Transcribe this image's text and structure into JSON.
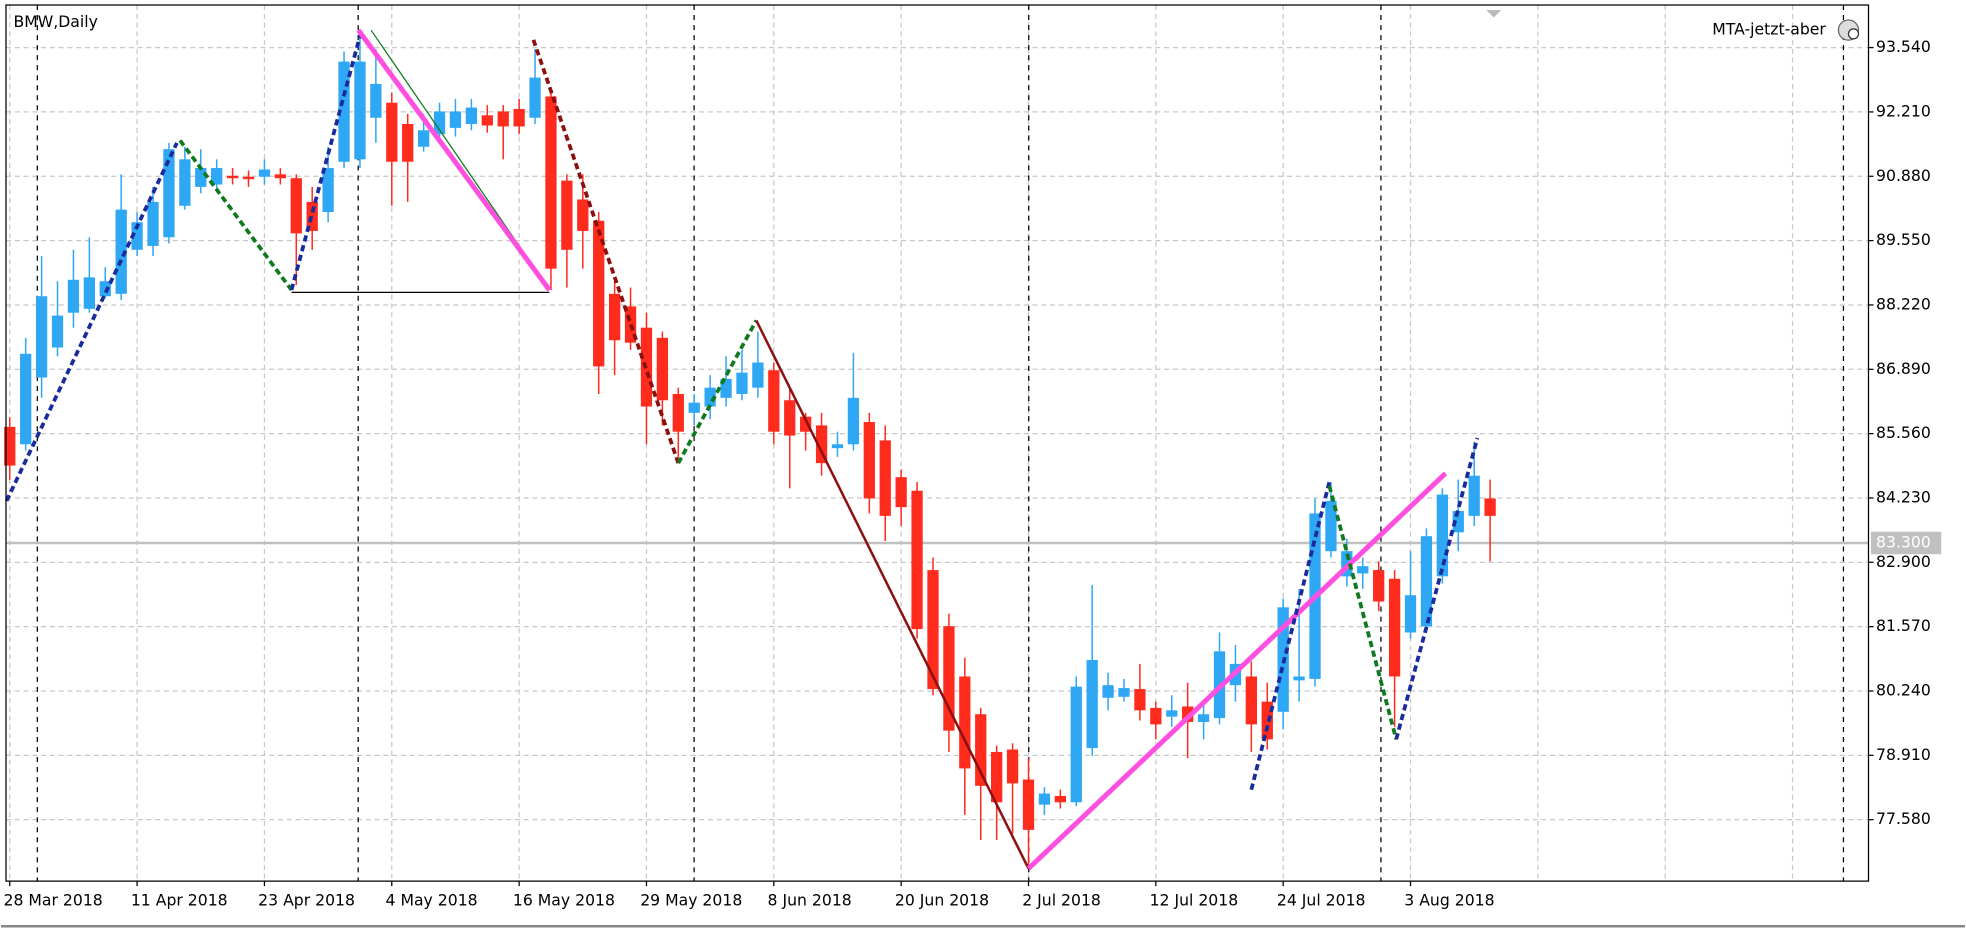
{
  "chart_data": {
    "type": "candlestick",
    "title": "BMW,Daily",
    "indicator": "MTA-jetzt-aber",
    "up_color": "#2ea7f5",
    "down_color": "#ff2b1c",
    "grid": true,
    "ylim": [
      76.31,
      94.42
    ],
    "yticks": [
      {
        "value": 93.54,
        "label": "93.540"
      },
      {
        "value": 92.21,
        "label": "92.210"
      },
      {
        "value": 90.88,
        "label": "90.880"
      },
      {
        "value": 89.55,
        "label": "89.550"
      },
      {
        "value": 88.22,
        "label": "88.220"
      },
      {
        "value": 86.89,
        "label": "86.890"
      },
      {
        "value": 85.56,
        "label": "85.560"
      },
      {
        "value": 84.23,
        "label": "84.230"
      },
      {
        "value": 82.9,
        "label": "82.900"
      },
      {
        "value": 81.57,
        "label": "81.570"
      },
      {
        "value": 80.24,
        "label": "80.240"
      },
      {
        "value": 78.91,
        "label": "78.910"
      },
      {
        "value": 77.58,
        "label": "77.580"
      }
    ],
    "bid": {
      "value": 83.3,
      "label": "83.300"
    },
    "categories": [
      "28 Mar 2018",
      null,
      null,
      null,
      null,
      null,
      null,
      null,
      "11 Apr 2018",
      null,
      null,
      null,
      null,
      null,
      null,
      null,
      "23 Apr 2018",
      null,
      null,
      null,
      null,
      null,
      null,
      null,
      "4 May 2018",
      null,
      null,
      null,
      null,
      null,
      null,
      null,
      "16 May 2018",
      null,
      null,
      null,
      null,
      null,
      null,
      null,
      "29 May 2018",
      null,
      null,
      null,
      null,
      null,
      null,
      null,
      "8 Jun 2018",
      null,
      null,
      null,
      null,
      null,
      null,
      null,
      "20 Jun 2018",
      null,
      null,
      null,
      null,
      null,
      null,
      null,
      "2 Jul 2018",
      null,
      null,
      null,
      null,
      null,
      null,
      null,
      "12 Jul 2018",
      null,
      null,
      null,
      null,
      null,
      null,
      null,
      "24 Jul 2018",
      null,
      null,
      null,
      null,
      null,
      null,
      null,
      "3 Aug 2018",
      null,
      null,
      null,
      null,
      null
    ],
    "open": [
      85.7,
      85.34,
      86.72,
      87.34,
      88.06,
      88.14,
      88.4,
      88.45,
      89.36,
      89.44,
      89.62,
      90.27,
      90.66,
      90.71,
      90.89,
      90.87,
      90.87,
      90.92,
      90.84,
      90.35,
      90.14,
      91.18,
      91.23,
      92.09,
      92.4,
      91.96,
      91.49,
      91.75,
      91.88,
      91.96,
      92.14,
      92.22,
      92.27,
      92.09,
      92.53,
      90.79,
      90.4,
      89.96,
      88.45,
      88.19,
      87.75,
      87.54,
      86.38,
      85.99,
      86.12,
      86.3,
      86.38,
      86.51,
      86.87,
      86.25,
      85.91,
      85.73,
      85.26,
      85.34,
      85.8,
      85.42,
      84.66,
      84.38,
      82.74,
      81.58,
      80.54,
      79.76,
      78.98,
      79.03,
      78.41,
      77.89,
      78.07,
      77.94,
      79.06,
      80.1,
      80.12,
      80.28,
      79.89,
      79.71,
      79.92,
      79.6,
      79.68,
      80.36,
      80.54,
      80.02,
      79.81,
      80.46,
      80.49,
      83.13,
      82.61,
      82.67,
      82.74,
      82.56,
      81.45,
      81.58,
      82.61,
      83.52,
      83.86,
      84.22
    ],
    "high": [
      85.9,
      87.54,
      89.23,
      88.71,
      89.36,
      89.62,
      89.0,
      90.92,
      90.14,
      90.66,
      91.57,
      91.49,
      91.44,
      91.23,
      91.05,
      91.0,
      91.23,
      91.05,
      90.92,
      90.66,
      91.49,
      93.46,
      93.83,
      93.51,
      92.61,
      92.17,
      92.17,
      92.4,
      92.48,
      92.48,
      92.35,
      92.35,
      92.48,
      93.51,
      92.61,
      90.92,
      90.92,
      90.14,
      88.71,
      88.58,
      88.06,
      87.67,
      86.51,
      86.38,
      86.77,
      87.16,
      87.29,
      87.67,
      87.03,
      86.51,
      85.99,
      85.99,
      85.6,
      87.23,
      85.99,
      85.73,
      84.82,
      84.56,
      83.0,
      81.84,
      80.93,
      79.89,
      79.11,
      79.16,
      78.85,
      78.25,
      78.2,
      80.54,
      82.43,
      80.62,
      80.49,
      80.8,
      80.02,
      80.15,
      80.41,
      80.07,
      81.45,
      81.19,
      80.85,
      80.41,
      82.15,
      82.35,
      84.22,
      84.56,
      83.39,
      83.0,
      82.92,
      82.74,
      83.13,
      83.6,
      84.43,
      84.61,
      85.39,
      84.61
    ],
    "low": [
      84.6,
      85.21,
      86.3,
      87.16,
      87.75,
      88.06,
      88.38,
      88.32,
      89.23,
      89.23,
      89.49,
      90.19,
      90.53,
      90.58,
      90.71,
      90.66,
      90.71,
      90.71,
      88.63,
      89.36,
      89.93,
      91.05,
      91.05,
      91.57,
      90.27,
      90.35,
      91.39,
      91.62,
      91.7,
      91.83,
      91.78,
      91.23,
      91.75,
      91.96,
      88.53,
      88.58,
      88.97,
      86.38,
      86.77,
      87.29,
      85.34,
      85.73,
      85.08,
      85.73,
      85.86,
      86.12,
      86.25,
      86.3,
      85.34,
      84.43,
      85.21,
      84.69,
      85.08,
      85.21,
      83.91,
      83.34,
      83.65,
      81.32,
      80.15,
      78.98,
      77.68,
      77.16,
      77.16,
      77.29,
      76.64,
      77.68,
      77.81,
      77.86,
      78.9,
      79.84,
      80.02,
      79.63,
      79.24,
      79.5,
      78.85,
      79.24,
      79.55,
      80.02,
      78.98,
      79.03,
      79.45,
      80.02,
      80.33,
      83.0,
      82.4,
      82.35,
      81.89,
      79.5,
      81.32,
      81.45,
      82.46,
      83.13,
      83.65,
      82.92
    ],
    "close": [
      84.9,
      87.21,
      88.4,
      88.0,
      88.74,
      88.79,
      88.71,
      90.19,
      89.93,
      90.35,
      91.44,
      91.23,
      91.05,
      91.05,
      90.84,
      90.82,
      91.02,
      90.84,
      89.7,
      89.75,
      91.05,
      93.25,
      93.25,
      92.79,
      91.18,
      91.18,
      91.83,
      92.22,
      92.22,
      92.3,
      91.93,
      91.91,
      91.91,
      92.92,
      88.97,
      89.36,
      89.75,
      86.95,
      87.49,
      87.44,
      86.12,
      86.25,
      85.6,
      86.2,
      86.51,
      86.69,
      86.82,
      87.03,
      85.6,
      85.52,
      85.6,
      84.95,
      85.34,
      86.3,
      84.22,
      83.86,
      84.04,
      81.52,
      80.28,
      79.42,
      78.64,
      78.28,
      77.94,
      78.33,
      77.37,
      78.12,
      77.94,
      80.33,
      80.88,
      80.36,
      80.3,
      79.84,
      79.55,
      79.84,
      79.6,
      79.76,
      81.06,
      80.8,
      79.55,
      79.24,
      81.97,
      80.54,
      83.91,
      84.17,
      83.13,
      82.82,
      82.09,
      80.54,
      82.22,
      83.44,
      84.3,
      83.96,
      84.69,
      83.86
    ],
    "lines": [
      {
        "color": "#1a2b9c",
        "dash": true,
        "width": 3,
        "x": [
          -0.2,
          10.5
        ],
        "y": [
          84.17,
          91.57
        ]
      },
      {
        "color": "#0f7a1e",
        "dash": true,
        "width": 3,
        "x": [
          10.7,
          17.7
        ],
        "y": [
          91.62,
          88.53
        ]
      },
      {
        "color": "#1a2b9c",
        "dash": true,
        "width": 3,
        "x": [
          17.7,
          22.1
        ],
        "y": [
          88.53,
          93.9
        ]
      },
      {
        "color": "#000000",
        "dash": false,
        "width": 1,
        "x": [
          17.7,
          33.9
        ],
        "y": [
          88.48,
          88.48
        ]
      },
      {
        "color": "#0f7a1e",
        "dash": false,
        "width": 1,
        "x": [
          22.7,
          33.9
        ],
        "y": [
          93.9,
          88.53
        ]
      },
      {
        "color": "#ff4fe0",
        "dash": false,
        "width": 4,
        "x": [
          21.9,
          33.9
        ],
        "y": [
          93.9,
          88.53
        ]
      },
      {
        "color": "#8b1010",
        "dash": true,
        "width": 3,
        "x": [
          32.9,
          42.0
        ],
        "y": [
          93.7,
          84.95
        ]
      },
      {
        "color": "#0f7a1e",
        "dash": true,
        "width": 3,
        "x": [
          42.0,
          46.9
        ],
        "y": [
          84.95,
          87.9
        ]
      },
      {
        "color": "#8b1010",
        "dash": false,
        "width": 2,
        "x": [
          46.9,
          64.0
        ],
        "y": [
          87.9,
          76.57
        ]
      },
      {
        "color": "#ff4fe0",
        "dash": false,
        "width": 4,
        "x": [
          64.0,
          90.2
        ],
        "y": [
          76.57,
          84.74
        ]
      },
      {
        "color": "#1a2b9c",
        "dash": true,
        "width": 3,
        "x": [
          78.0,
          82.9
        ],
        "y": [
          78.2,
          84.56
        ]
      },
      {
        "color": "#0f7a1e",
        "dash": true,
        "width": 3,
        "x": [
          82.9,
          87.1
        ],
        "y": [
          84.48,
          79.24
        ]
      },
      {
        "color": "#1a2b9c",
        "dash": true,
        "width": 3,
        "x": [
          87.1,
          92.2
        ],
        "y": [
          79.24,
          85.47
        ]
      }
    ]
  }
}
